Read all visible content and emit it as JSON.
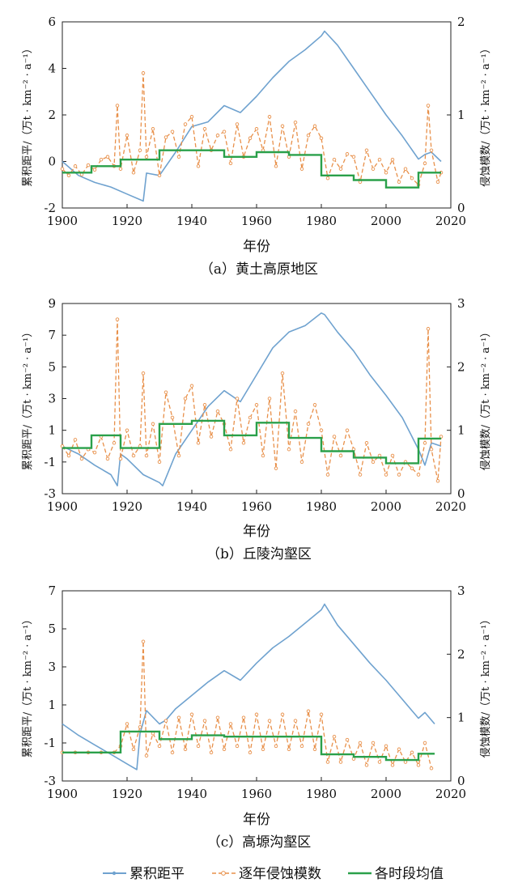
{
  "legend": {
    "cumulative": "累积距平",
    "annual": "逐年侵蚀模数",
    "mean": "各时段均值"
  },
  "colors": {
    "cumulative": "#6fa2cf",
    "annual": "#e8904a",
    "mean": "#2aa04a"
  },
  "chart_data": [
    {
      "type": "line",
      "caption": "（a）黄土高原地区",
      "xlabel": "年份",
      "ylabel": "累积距平/（万t · km⁻² · a⁻¹）",
      "y2label": "侵蚀模数/（万t · km⁻² · a⁻¹）",
      "xlim": [
        1900,
        2020
      ],
      "ylim": [
        -2,
        6
      ],
      "y2lim": [
        0,
        2
      ],
      "xticks": [
        "1900",
        "1920",
        "1940",
        "1960",
        "1980",
        "2000",
        "2020"
      ],
      "yticks": [
        "-2",
        "0",
        "2",
        "4",
        "6"
      ],
      "y2ticks": [
        "0",
        "1",
        "2"
      ],
      "series": [
        {
          "name": "累积距平",
          "axis": "left",
          "x": [
            1900,
            1905,
            1910,
            1915,
            1920,
            1925,
            1926,
            1930,
            1935,
            1940,
            1945,
            1950,
            1955,
            1960,
            1965,
            1970,
            1975,
            1980,
            1981,
            1985,
            1990,
            1995,
            2000,
            2005,
            2010,
            2012,
            2014,
            2017
          ],
          "y": [
            0,
            -0.6,
            -0.9,
            -1.1,
            -1.4,
            -1.7,
            -0.5,
            -0.6,
            0.4,
            1.5,
            1.7,
            2.4,
            2.1,
            2.8,
            3.6,
            4.3,
            4.8,
            5.4,
            5.6,
            5.0,
            4.0,
            3.0,
            2.0,
            1.1,
            0.1,
            0.3,
            0.4,
            0.0
          ]
        },
        {
          "name": "逐年侵蚀模数",
          "axis": "right",
          "x": [
            1900,
            1902,
            1904,
            1906,
            1908,
            1910,
            1912,
            1914,
            1916,
            1917,
            1918,
            1920,
            1922,
            1924,
            1925,
            1926,
            1928,
            1930,
            1932,
            1934,
            1936,
            1938,
            1940,
            1942,
            1944,
            1946,
            1948,
            1950,
            1952,
            1954,
            1956,
            1958,
            1960,
            1962,
            1964,
            1966,
            1968,
            1970,
            1972,
            1974,
            1976,
            1978,
            1980,
            1982,
            1984,
            1986,
            1988,
            1990,
            1992,
            1994,
            1996,
            1998,
            2000,
            2002,
            2004,
            2006,
            2008,
            2010,
            2012,
            2013,
            2014,
            2016,
            2017
          ],
          "y": [
            0.42,
            0.35,
            0.45,
            0.36,
            0.46,
            0.41,
            0.52,
            0.55,
            0.45,
            1.1,
            0.42,
            0.78,
            0.38,
            0.62,
            1.45,
            0.55,
            0.85,
            0.35,
            0.76,
            0.82,
            0.55,
            0.9,
            0.98,
            0.45,
            0.85,
            0.62,
            0.78,
            0.82,
            0.48,
            0.9,
            0.55,
            0.75,
            0.85,
            0.62,
            0.98,
            0.45,
            0.88,
            0.55,
            0.92,
            0.42,
            0.78,
            0.88,
            0.75,
            0.32,
            0.52,
            0.42,
            0.58,
            0.55,
            0.28,
            0.62,
            0.42,
            0.52,
            0.38,
            0.52,
            0.28,
            0.42,
            0.32,
            0.25,
            0.48,
            1.1,
            0.62,
            0.28,
            0.38
          ]
        },
        {
          "name": "各时段均值",
          "axis": "right",
          "step": true,
          "x": [
            1900,
            1909,
            1909,
            1918,
            1918,
            1930,
            1930,
            1950,
            1950,
            1960,
            1960,
            1970,
            1970,
            1980,
            1980,
            1990,
            1990,
            2000,
            2000,
            2010,
            2010,
            2017
          ],
          "y": [
            0.38,
            0.38,
            0.45,
            0.45,
            0.52,
            0.52,
            0.62,
            0.62,
            0.55,
            0.55,
            0.6,
            0.6,
            0.57,
            0.57,
            0.35,
            0.35,
            0.3,
            0.3,
            0.22,
            0.22,
            0.38,
            0.38
          ]
        }
      ]
    },
    {
      "type": "line",
      "caption": "（b）丘陵沟壑区",
      "xlabel": "年份",
      "ylabel": "累积距平/（万t · km⁻² · a⁻¹）",
      "y2label": "侵蚀模数/（万t · km⁻² · a⁻¹）",
      "xlim": [
        1900,
        2020
      ],
      "ylim": [
        -3,
        9
      ],
      "y2lim": [
        0,
        3
      ],
      "xticks": [
        "1900",
        "1920",
        "1940",
        "1960",
        "1980",
        "2000",
        "2020"
      ],
      "yticks": [
        "-3",
        "-1",
        "1",
        "3",
        "5",
        "7",
        "9"
      ],
      "y2ticks": [
        "0",
        "1",
        "2",
        "3"
      ],
      "series": [
        {
          "name": "累积距平",
          "axis": "left",
          "x": [
            1900,
            1905,
            1910,
            1915,
            1917,
            1918,
            1920,
            1925,
            1930,
            1931,
            1935,
            1940,
            1945,
            1950,
            1955,
            1960,
            1965,
            1970,
            1975,
            1980,
            1981,
            1985,
            1990,
            1995,
            2000,
            2005,
            2010,
            2012,
            2014,
            2017
          ],
          "y": [
            0,
            -0.5,
            -1.2,
            -1.8,
            -2.5,
            -0.5,
            -0.8,
            -1.8,
            -2.3,
            -2.5,
            -0.5,
            1.0,
            2.5,
            3.5,
            2.8,
            4.5,
            6.2,
            7.2,
            7.6,
            8.4,
            8.3,
            7.2,
            6.0,
            4.5,
            3.2,
            1.8,
            -0.2,
            -1.2,
            0.2,
            0.0
          ]
        },
        {
          "name": "逐年侵蚀模数",
          "axis": "right",
          "x": [
            1900,
            1902,
            1904,
            1906,
            1908,
            1910,
            1912,
            1914,
            1916,
            1917,
            1918,
            1920,
            1922,
            1924,
            1925,
            1926,
            1928,
            1930,
            1932,
            1934,
            1936,
            1938,
            1940,
            1942,
            1944,
            1946,
            1948,
            1950,
            1952,
            1954,
            1956,
            1958,
            1960,
            1962,
            1964,
            1966,
            1968,
            1970,
            1972,
            1974,
            1976,
            1978,
            1980,
            1982,
            1984,
            1986,
            1988,
            1990,
            1992,
            1994,
            1996,
            1998,
            2000,
            2002,
            2004,
            2006,
            2008,
            2010,
            2012,
            2013,
            2014,
            2016,
            2017
          ],
          "y": [
            0.75,
            0.6,
            0.85,
            0.55,
            0.7,
            0.65,
            0.9,
            0.55,
            0.8,
            2.75,
            0.55,
            1.0,
            0.6,
            0.75,
            1.9,
            0.6,
            1.1,
            0.5,
            1.6,
            1.2,
            0.6,
            1.5,
            1.7,
            0.8,
            1.4,
            0.9,
            1.3,
            1.1,
            0.7,
            1.5,
            0.8,
            1.2,
            1.4,
            0.6,
            1.5,
            0.4,
            1.9,
            0.7,
            1.3,
            0.5,
            1.1,
            1.4,
            1.0,
            0.3,
            0.9,
            0.6,
            1.0,
            0.7,
            0.3,
            0.8,
            0.5,
            0.6,
            0.3,
            0.6,
            0.3,
            0.5,
            0.4,
            0.3,
            0.8,
            2.6,
            0.7,
            0.2,
            0.9
          ]
        },
        {
          "name": "各时段均值",
          "axis": "right",
          "step": true,
          "x": [
            1900,
            1909,
            1909,
            1918,
            1918,
            1930,
            1930,
            1940,
            1940,
            1950,
            1950,
            1960,
            1960,
            1970,
            1970,
            1980,
            1980,
            1990,
            1990,
            2000,
            2000,
            2010,
            2010,
            2017
          ],
          "y": [
            0.72,
            0.72,
            0.92,
            0.92,
            0.72,
            0.72,
            1.1,
            1.1,
            1.15,
            1.15,
            0.92,
            0.92,
            1.12,
            1.12,
            0.88,
            0.88,
            0.67,
            0.67,
            0.57,
            0.57,
            0.48,
            0.48,
            0.87,
            0.87
          ]
        }
      ]
    },
    {
      "type": "line",
      "caption": "（c）高塬沟壑区",
      "xlabel": "年份",
      "ylabel": "累积距平/（万t · km⁻² · a⁻¹）",
      "y2label": "侵蚀模数/（万t · km⁻² · a⁻¹）",
      "xlim": [
        1900,
        2020
      ],
      "ylim": [
        -3,
        7
      ],
      "y2lim": [
        0,
        3
      ],
      "xticks": [
        "1900",
        "1920",
        "1940",
        "1960",
        "1980",
        "2000",
        "2020"
      ],
      "yticks": [
        "-3",
        "-1",
        "1",
        "3",
        "5",
        "7"
      ],
      "y2ticks": [
        "0",
        "1",
        "2",
        "3"
      ],
      "series": [
        {
          "name": "累积距平",
          "axis": "left",
          "x": [
            1900,
            1905,
            1910,
            1915,
            1920,
            1923,
            1924,
            1926,
            1930,
            1932,
            1935,
            1940,
            1945,
            1950,
            1955,
            1960,
            1965,
            1970,
            1975,
            1980,
            1981,
            1985,
            1990,
            1995,
            2000,
            2005,
            2010,
            2012,
            2015
          ],
          "y": [
            0,
            -0.6,
            -1.1,
            -1.6,
            -2.1,
            -2.4,
            -0.5,
            0.7,
            0.0,
            0.2,
            0.8,
            1.5,
            2.2,
            2.8,
            2.3,
            3.2,
            4.0,
            4.6,
            5.3,
            6.0,
            6.3,
            5.2,
            4.2,
            3.2,
            2.3,
            1.3,
            0.3,
            0.6,
            0.0
          ]
        },
        {
          "name": "逐年侵蚀模数",
          "axis": "right",
          "x": [
            1900,
            1904,
            1908,
            1912,
            1916,
            1918,
            1920,
            1922,
            1924,
            1925,
            1926,
            1928,
            1930,
            1932,
            1934,
            1936,
            1938,
            1940,
            1942,
            1944,
            1946,
            1948,
            1950,
            1952,
            1954,
            1956,
            1958,
            1960,
            1962,
            1964,
            1966,
            1968,
            1970,
            1972,
            1974,
            1976,
            1978,
            1980,
            1982,
            1984,
            1986,
            1988,
            1990,
            1992,
            1994,
            1996,
            1998,
            2000,
            2002,
            2004,
            2006,
            2008,
            2010,
            2012,
            2014
          ],
          "y": [
            0.45,
            0.45,
            0.45,
            0.45,
            0.45,
            0.55,
            0.9,
            0.5,
            0.85,
            2.2,
            0.4,
            0.75,
            0.55,
            0.95,
            0.45,
            1.0,
            0.5,
            1.05,
            0.55,
            0.95,
            0.45,
            1.0,
            0.5,
            0.9,
            0.55,
            1.0,
            0.45,
            1.05,
            0.5,
            0.95,
            0.55,
            1.05,
            0.5,
            0.95,
            0.55,
            1.1,
            0.5,
            1.05,
            0.3,
            0.7,
            0.3,
            0.65,
            0.35,
            0.6,
            0.25,
            0.6,
            0.3,
            0.55,
            0.25,
            0.5,
            0.3,
            0.45,
            0.25,
            0.6,
            0.2
          ]
        },
        {
          "name": "各时段均值",
          "axis": "right",
          "step": true,
          "x": [
            1900,
            1918,
            1918,
            1930,
            1930,
            1940,
            1940,
            1950,
            1950,
            1980,
            1980,
            1990,
            1990,
            2000,
            2000,
            2010,
            2010,
            2015
          ],
          "y": [
            0.45,
            0.45,
            0.78,
            0.78,
            0.66,
            0.66,
            0.72,
            0.72,
            0.7,
            0.7,
            0.42,
            0.42,
            0.38,
            0.38,
            0.33,
            0.33,
            0.43,
            0.43
          ]
        }
      ]
    }
  ]
}
